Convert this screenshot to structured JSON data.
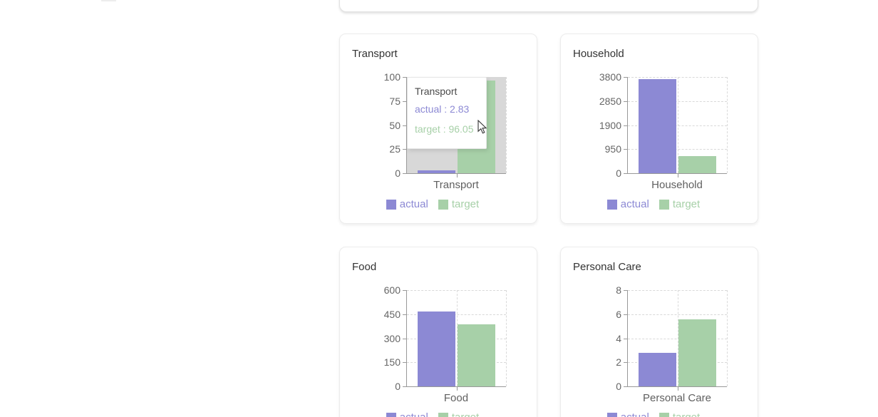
{
  "page": {
    "background": "#ffffff",
    "colors": {
      "actual": "#8c89d4",
      "target": "#a7d0a8",
      "cursor_band": "#d8d8d8",
      "axis_line": "#999999",
      "grid_line": "#d9d9d9",
      "tick_text": "#666666",
      "title_text": "#333333"
    }
  },
  "chart_data": [
    {
      "type": "bar",
      "title": "Transport",
      "categories": [
        "Transport"
      ],
      "yticks": [
        0,
        25,
        50,
        75,
        100
      ],
      "ylim": [
        0,
        100
      ],
      "grid": "dashed",
      "legend_position": "bottom",
      "series": [
        {
          "name": "actual",
          "value": 2.83,
          "color": "#8c89d4"
        },
        {
          "name": "target",
          "value": 96.05,
          "color": "#a7d0a8"
        }
      ],
      "hovered": true
    },
    {
      "type": "bar",
      "title": "Household",
      "categories": [
        "Household"
      ],
      "yticks": [
        0,
        950,
        1900,
        2850,
        3800
      ],
      "ylim": [
        0,
        3800
      ],
      "grid": "dashed",
      "legend_position": "bottom",
      "series": [
        {
          "name": "actual",
          "value": 3730,
          "color": "#8c89d4"
        },
        {
          "name": "target",
          "value": 680,
          "color": "#a7d0a8"
        }
      ],
      "hovered": false
    },
    {
      "type": "bar",
      "title": "Food",
      "categories": [
        "Food"
      ],
      "yticks": [
        0,
        150,
        300,
        450,
        600
      ],
      "ylim": [
        0,
        600
      ],
      "grid": "dashed",
      "legend_position": "bottom",
      "series": [
        {
          "name": "actual",
          "value": 465,
          "color": "#8c89d4"
        },
        {
          "name": "target",
          "value": 385,
          "color": "#a7d0a8"
        }
      ],
      "hovered": false
    },
    {
      "type": "bar",
      "title": "Personal Care",
      "categories": [
        "Personal Care"
      ],
      "yticks": [
        0,
        2,
        4,
        6,
        8
      ],
      "ylim": [
        0,
        8
      ],
      "grid": "dashed",
      "legend_position": "bottom",
      "series": [
        {
          "name": "actual",
          "value": 2.8,
          "color": "#8c89d4"
        },
        {
          "name": "target",
          "value": 5.58,
          "color": "#a7d0a8"
        }
      ],
      "hovered": false
    }
  ],
  "tooltip": {
    "chart": "Transport",
    "label": "Transport",
    "items": [
      "actual : 2.83",
      "target : 96.05"
    ]
  }
}
